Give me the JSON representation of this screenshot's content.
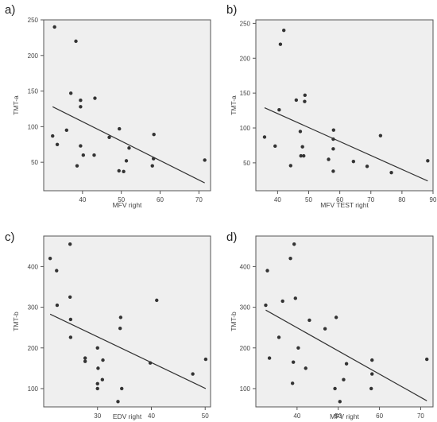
{
  "colors": {
    "plot_bg": "#efefef",
    "frame": "#555555",
    "point": "#333333",
    "line": "#333333",
    "text": "#444444"
  },
  "chart_data": [
    {
      "id": "a",
      "letter": "a)",
      "type": "scatter",
      "xlabel": "MFV right",
      "ylabel": "TMT-a",
      "xlim": [
        30,
        73
      ],
      "ylim": [
        10,
        250
      ],
      "xticks": [
        40,
        50,
        60,
        70
      ],
      "yticks": [
        50,
        100,
        150,
        200,
        250
      ],
      "points": [
        [
          32.8,
          240
        ],
        [
          38.3,
          220
        ],
        [
          37.0,
          147
        ],
        [
          39.5,
          137
        ],
        [
          43.2,
          140
        ],
        [
          39.5,
          128
        ],
        [
          32.3,
          87
        ],
        [
          33.5,
          75
        ],
        [
          35.9,
          95
        ],
        [
          39.5,
          73
        ],
        [
          40.2,
          60
        ],
        [
          43.0,
          60
        ],
        [
          38.6,
          45
        ],
        [
          46.9,
          85
        ],
        [
          49.5,
          97
        ],
        [
          49.4,
          38
        ],
        [
          50.6,
          37
        ],
        [
          51.3,
          52
        ],
        [
          52.0,
          70
        ],
        [
          58.4,
          89
        ],
        [
          58.3,
          55
        ],
        [
          58.0,
          45
        ],
        [
          71.5,
          53
        ]
      ],
      "trendline": [
        [
          32.3,
          128
        ],
        [
          71.5,
          21
        ]
      ]
    },
    {
      "id": "b",
      "letter": "b)",
      "type": "scatter",
      "xlabel": "MFV TEST right",
      "ylabel": "TMT-a",
      "xlim": [
        33,
        90
      ],
      "ylim": [
        10,
        255
      ],
      "xticks": [
        40,
        50,
        60,
        70,
        80,
        90
      ],
      "yticks": [
        50,
        100,
        150,
        200,
        250
      ],
      "points": [
        [
          42.0,
          240
        ],
        [
          40.9,
          220
        ],
        [
          48.8,
          147
        ],
        [
          46.0,
          140
        ],
        [
          48.7,
          138
        ],
        [
          40.5,
          126
        ],
        [
          35.8,
          87
        ],
        [
          39.2,
          74
        ],
        [
          47.3,
          95
        ],
        [
          48.0,
          73
        ],
        [
          47.5,
          60
        ],
        [
          48.4,
          60
        ],
        [
          44.2,
          46
        ],
        [
          56.4,
          55
        ],
        [
          58.0,
          97
        ],
        [
          57.9,
          84
        ],
        [
          57.9,
          70
        ],
        [
          57.9,
          38
        ],
        [
          64.4,
          52
        ],
        [
          68.8,
          45
        ],
        [
          73.1,
          89
        ],
        [
          76.6,
          36
        ],
        [
          88.3,
          53
        ]
      ],
      "trendline": [
        [
          35.8,
          129
        ],
        [
          88.3,
          24
        ]
      ]
    },
    {
      "id": "c",
      "letter": "c)",
      "type": "scatter",
      "xlabel": "EDV right",
      "ylabel": "TMT-b",
      "xlim": [
        20,
        51
      ],
      "ylim": [
        55,
        475
      ],
      "xticks": [
        30,
        40,
        50
      ],
      "yticks": [
        100,
        200,
        300,
        400
      ],
      "points": [
        [
          21.2,
          420
        ],
        [
          22.4,
          390
        ],
        [
          22.5,
          305
        ],
        [
          24.9,
          455
        ],
        [
          24.9,
          325
        ],
        [
          25.0,
          270
        ],
        [
          25.0,
          226
        ],
        [
          27.7,
          175
        ],
        [
          27.7,
          167
        ],
        [
          30.0,
          200
        ],
        [
          30.1,
          150
        ],
        [
          30.0,
          112
        ],
        [
          30.0,
          100
        ],
        [
          31.0,
          170
        ],
        [
          30.9,
          122
        ],
        [
          34.3,
          275
        ],
        [
          34.2,
          248
        ],
        [
          34.5,
          100
        ],
        [
          33.8,
          68
        ],
        [
          39.8,
          163
        ],
        [
          41.0,
          317
        ],
        [
          47.7,
          136
        ],
        [
          50.1,
          172
        ]
      ],
      "trendline": [
        [
          21.2,
          283
        ],
        [
          50.1,
          100
        ]
      ]
    },
    {
      "id": "d",
      "letter": "d)",
      "type": "scatter",
      "xlabel": "MFV right",
      "ylabel": "TMT-b",
      "xlim": [
        30,
        73
      ],
      "ylim": [
        55,
        475
      ],
      "xticks": [
        40,
        50,
        60,
        70
      ],
      "yticks": [
        100,
        200,
        300,
        400
      ],
      "points": [
        [
          32.8,
          390
        ],
        [
          32.4,
          305
        ],
        [
          33.3,
          175
        ],
        [
          36.5,
          315
        ],
        [
          39.3,
          455
        ],
        [
          38.4,
          420
        ],
        [
          39.6,
          322
        ],
        [
          40.3,
          200
        ],
        [
          39.1,
          165
        ],
        [
          38.9,
          113
        ],
        [
          35.6,
          226
        ],
        [
          42.1,
          150
        ],
        [
          43.0,
          268
        ],
        [
          46.8,
          247
        ],
        [
          49.5,
          275
        ],
        [
          49.2,
          100
        ],
        [
          50.4,
          68
        ],
        [
          51.3,
          122
        ],
        [
          52.0,
          161
        ],
        [
          58.2,
          170
        ],
        [
          58.2,
          136
        ],
        [
          58.0,
          100
        ],
        [
          71.5,
          172
        ]
      ],
      "trendline": [
        [
          32.4,
          293
        ],
        [
          71.5,
          70
        ]
      ]
    }
  ]
}
